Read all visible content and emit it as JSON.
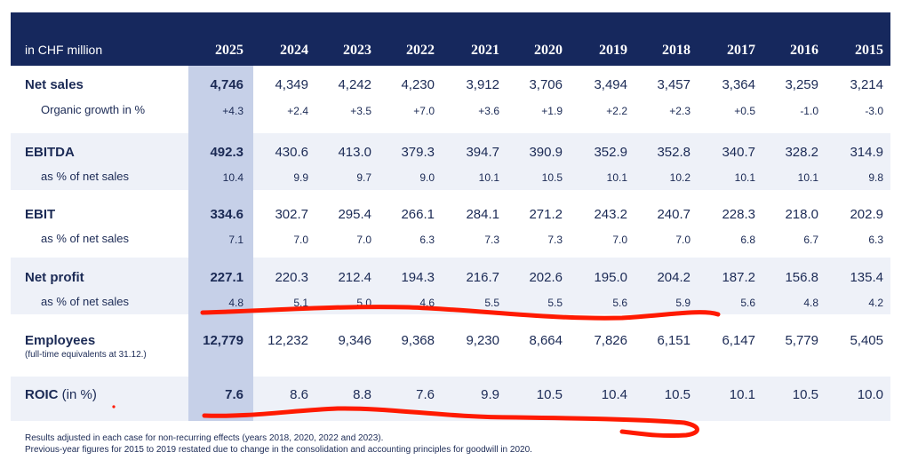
{
  "header": {
    "unit": "in CHF million",
    "years": [
      "2025",
      "2024",
      "2023",
      "2022",
      "2021",
      "2020",
      "2019",
      "2018",
      "2017",
      "2016",
      "2015"
    ]
  },
  "rows": {
    "net_sales": {
      "label": "Net sales",
      "values": [
        "4,746",
        "4,349",
        "4,242",
        "4,230",
        "3,912",
        "3,706",
        "3,494",
        "3,457",
        "3,364",
        "3,259",
        "3,214"
      ],
      "sub_label": "Organic growth in %",
      "sub_values": [
        "+4.3",
        "+2.4",
        "+3.5",
        "+7.0",
        "+3.6",
        "+1.9",
        "+2.2",
        "+2.3",
        "+0.5",
        "-1.0",
        "-3.0"
      ]
    },
    "ebitda": {
      "label": "EBITDA",
      "values": [
        "492.3",
        "430.6",
        "413.0",
        "379.3",
        "394.7",
        "390.9",
        "352.9",
        "352.8",
        "340.7",
        "328.2",
        "314.9"
      ],
      "sub_label": "as % of net sales",
      "sub_values": [
        "10.4",
        "9.9",
        "9.7",
        "9.0",
        "10.1",
        "10.5",
        "10.1",
        "10.2",
        "10.1",
        "10.1",
        "9.8"
      ]
    },
    "ebit": {
      "label": "EBIT",
      "values": [
        "334.6",
        "302.7",
        "295.4",
        "266.1",
        "284.1",
        "271.2",
        "243.2",
        "240.7",
        "228.3",
        "218.0",
        "202.9"
      ],
      "sub_label": "as % of net sales",
      "sub_values": [
        "7.1",
        "7.0",
        "7.0",
        "6.3",
        "7.3",
        "7.3",
        "7.0",
        "7.0",
        "6.8",
        "6.7",
        "6.3"
      ]
    },
    "net_profit": {
      "label": "Net profit",
      "values": [
        "227.1",
        "220.3",
        "212.4",
        "194.3",
        "216.7",
        "202.6",
        "195.0",
        "204.2",
        "187.2",
        "156.8",
        "135.4"
      ],
      "sub_label": "as % of net sales",
      "sub_values": [
        "4.8",
        "5.1",
        "5.0",
        "4.6",
        "5.5",
        "5.5",
        "5.6",
        "5.9",
        "5.6",
        "4.8",
        "4.2"
      ]
    },
    "employees": {
      "label": "Employees",
      "note": "(full-time equivalents at 31.12.)",
      "values": [
        "12,779",
        "12,232",
        "9,346",
        "9,368",
        "9,230",
        "8,664",
        "7,826",
        "6,151",
        "6,147",
        "5,779",
        "5,405"
      ]
    },
    "roic": {
      "label": "ROIC",
      "label_suffix": " (in %)",
      "values": [
        "7.6",
        "8.6",
        "8.8",
        "7.6",
        "9.9",
        "10.5",
        "10.4",
        "10.5",
        "10.1",
        "10.5",
        "10.0"
      ]
    }
  },
  "footnotes": [
    "Results adjusted in each case for non-recurring effects (years 2018, 2020, 2022 and 2023).",
    "Previous-year figures for 2015 to 2019 restated due to change in the consolidation and accounting principles for goodwill in 2020."
  ],
  "colors": {
    "header_bg": "#16285d",
    "band_bg": "#eef1f8",
    "highlight_col": "#c6d0e8",
    "text": "#1b2a55",
    "annotation": "#ff1a00"
  }
}
